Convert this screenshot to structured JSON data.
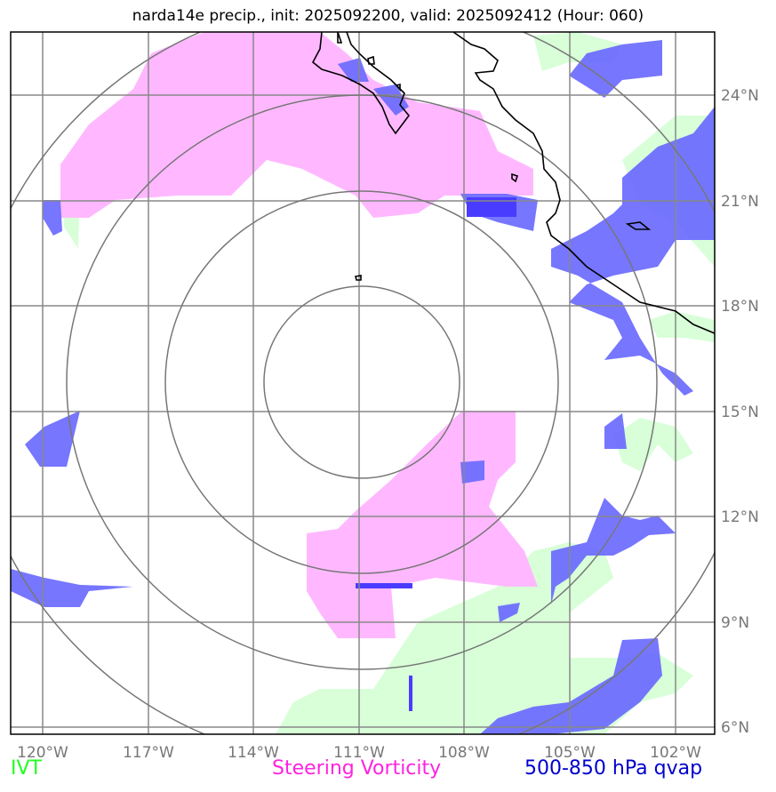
{
  "title": "narda14e precip., init: 2025092200, valid: 2025092412 (Hour: 060)",
  "legend": {
    "ivt": "IVT",
    "vorticity": "Steering Vorticity",
    "qvap": "500-850 hPa qvap"
  },
  "colors": {
    "ivt": "#d8ffd8",
    "vorticity": "#ffb8ff",
    "qvap": "#6a6aff",
    "qvap_dark": "#4a3cff",
    "grid": "#888888",
    "coast": "#000000"
  },
  "chart_data": {
    "type": "map",
    "title": "narda14e precip., init: 2025092200, valid: 2025092412 (Hour: 060)",
    "lon_range": [
      -120.9,
      -100.7
    ],
    "lat_range": [
      5.8,
      25.9
    ],
    "x_ticks": [
      "120°W",
      "117°W",
      "114°W",
      "111°W",
      "108°W",
      "105°W",
      "102°W"
    ],
    "y_ticks": [
      "24°N",
      "21°N",
      "18°N",
      "15°N",
      "12°N",
      "9°N",
      "6°N"
    ],
    "range_rings_center": {
      "lon": -111.0,
      "lat": 15.9
    },
    "range_rings_deg": [
      2.8,
      5.6,
      8.4,
      11.2
    ],
    "grid": true,
    "fields": [
      "IVT",
      "Steering Vorticity",
      "500-850 hPa qvap"
    ]
  }
}
